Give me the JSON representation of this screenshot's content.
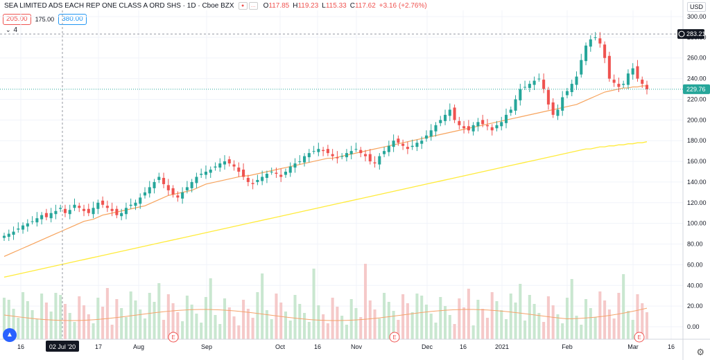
{
  "legend": {
    "title": "SEA LIMITED ADS EACH REP ONE CLASS A ORD SHS · 1D · Cboe BZX",
    "o_label": "O",
    "o_val": "117.85",
    "h_label": "H",
    "h_val": "119.23",
    "l_label": "L",
    "l_val": "115.33",
    "c_label": "C",
    "c_val": "117.62",
    "change": "+3.16 (+2.76%)"
  },
  "bid": "205.00",
  "spread": "175.00",
  "ask": "380.00",
  "indicators_count": "4",
  "currency": "USD",
  "crosshair_date": "02 Jul '20",
  "crosshair_price": "283.21",
  "last_price": "229.76",
  "colors": {
    "up": "#26a69a",
    "down": "#ef5350",
    "ma_short": "#f7a35c",
    "ma_long": "#ffeb3b",
    "vol_up": "#c9e7d0",
    "vol_down": "#f5c9c9",
    "vol_ma": "#f5a26a"
  },
  "chart_data": {
    "type": "candlestick",
    "y_ticks": [
      "300.00",
      "280.00",
      "260.00",
      "240.00",
      "220.00",
      "200.00",
      "180.00",
      "160.00",
      "140.00",
      "120.00",
      "100.00",
      "80.00",
      "60.00",
      "40.00",
      "20.00",
      "0.00"
    ],
    "ylim": [
      0,
      300
    ],
    "x_labels": [
      "16",
      "02 Jul '20",
      "17",
      "Aug",
      "Sep",
      "Oct",
      "16",
      "Nov",
      "Dec",
      "16",
      "2021",
      "Feb",
      "Mar",
      "16"
    ],
    "earnings_marker": "E",
    "series": [
      {
        "name": "price",
        "close": [
          88,
          90,
          92,
          95,
          98,
          100,
          102,
          105,
          108,
          106,
          110,
          112,
          115,
          110,
          113,
          118,
          115,
          112,
          110,
          115,
          120,
          118,
          115,
          112,
          108,
          110,
          115,
          118,
          120,
          125,
          130,
          135,
          140,
          145,
          138,
          132,
          128,
          125,
          130,
          135,
          140,
          145,
          148,
          150,
          152,
          155,
          158,
          160,
          158,
          155,
          150,
          145,
          140,
          138,
          142,
          145,
          148,
          150,
          148,
          145,
          150,
          155,
          158,
          160,
          165,
          168,
          170,
          172,
          170,
          168,
          165,
          163,
          165,
          168,
          170,
          172,
          168,
          165,
          160,
          158,
          165,
          170,
          175,
          180,
          178,
          175,
          172,
          175,
          178,
          180,
          185,
          190,
          195,
          200,
          205,
          210,
          200,
          195,
          192,
          190,
          195,
          198,
          196,
          194,
          190,
          195,
          198,
          205,
          210,
          220,
          230,
          232,
          235,
          238,
          240,
          230,
          215,
          205,
          210,
          222,
          228,
          235,
          242,
          258,
          272,
          278,
          280,
          274,
          260,
          240,
          236,
          232,
          235,
          245,
          250,
          240,
          235,
          229.76
        ]
      },
      {
        "name": "ma_short",
        "values": [
          68,
          70,
          72,
          74,
          76,
          78,
          80,
          82,
          84,
          86,
          88,
          90,
          92,
          94,
          96,
          98,
          100,
          102,
          103,
          104,
          106,
          108,
          109,
          110,
          111,
          112,
          113,
          114,
          115,
          116,
          117,
          119,
          121,
          123,
          125,
          127,
          128,
          129,
          130,
          131,
          132,
          134,
          136,
          138,
          139,
          140,
          141,
          142,
          143,
          144,
          145,
          146,
          146,
          147,
          148,
          149,
          150,
          151,
          152,
          153,
          154,
          155,
          156,
          157,
          158,
          159,
          160,
          161,
          162,
          163,
          163,
          164,
          165,
          166,
          167,
          168,
          169,
          170,
          171,
          172,
          173,
          174,
          175,
          176,
          177,
          178,
          179,
          180,
          181,
          182,
          183,
          184,
          185,
          186,
          187,
          188,
          189,
          190,
          191,
          192,
          193,
          194,
          195,
          196,
          197,
          198,
          199,
          200,
          201,
          202,
          203,
          204,
          205,
          206,
          207,
          208,
          209,
          210,
          211,
          212,
          213,
          214,
          215,
          217,
          219,
          221,
          223,
          225,
          227,
          228,
          229,
          230,
          231,
          231,
          232,
          232,
          233,
          233
        ]
      },
      {
        "name": "ma_long",
        "values": [
          48,
          49,
          50,
          51,
          52,
          53,
          54,
          55,
          56,
          57,
          58,
          59,
          60,
          61,
          62,
          63,
          64,
          65,
          66,
          67,
          68,
          69,
          70,
          71,
          72,
          73,
          74,
          75,
          76,
          77,
          78,
          79,
          80,
          81,
          82,
          83,
          84,
          85,
          86,
          87,
          88,
          89,
          90,
          91,
          92,
          93,
          94,
          95,
          96,
          97,
          98,
          99,
          100,
          101,
          102,
          103,
          104,
          105,
          106,
          107,
          108,
          109,
          110,
          111,
          112,
          113,
          114,
          115,
          116,
          117,
          118,
          119,
          120,
          121,
          122,
          123,
          124,
          125,
          126,
          127,
          128,
          129,
          130,
          131,
          132,
          133,
          134,
          135,
          136,
          137,
          138,
          139,
          140,
          141,
          142,
          143,
          144,
          145,
          146,
          147,
          148,
          149,
          150,
          151,
          152,
          153,
          154,
          155,
          156,
          157,
          158,
          159,
          160,
          161,
          162,
          163,
          164,
          165,
          166,
          167,
          168,
          169,
          170,
          171,
          172,
          172,
          173,
          174,
          174,
          175,
          175,
          176,
          176,
          177,
          177,
          178,
          178,
          179
        ]
      }
    ]
  }
}
